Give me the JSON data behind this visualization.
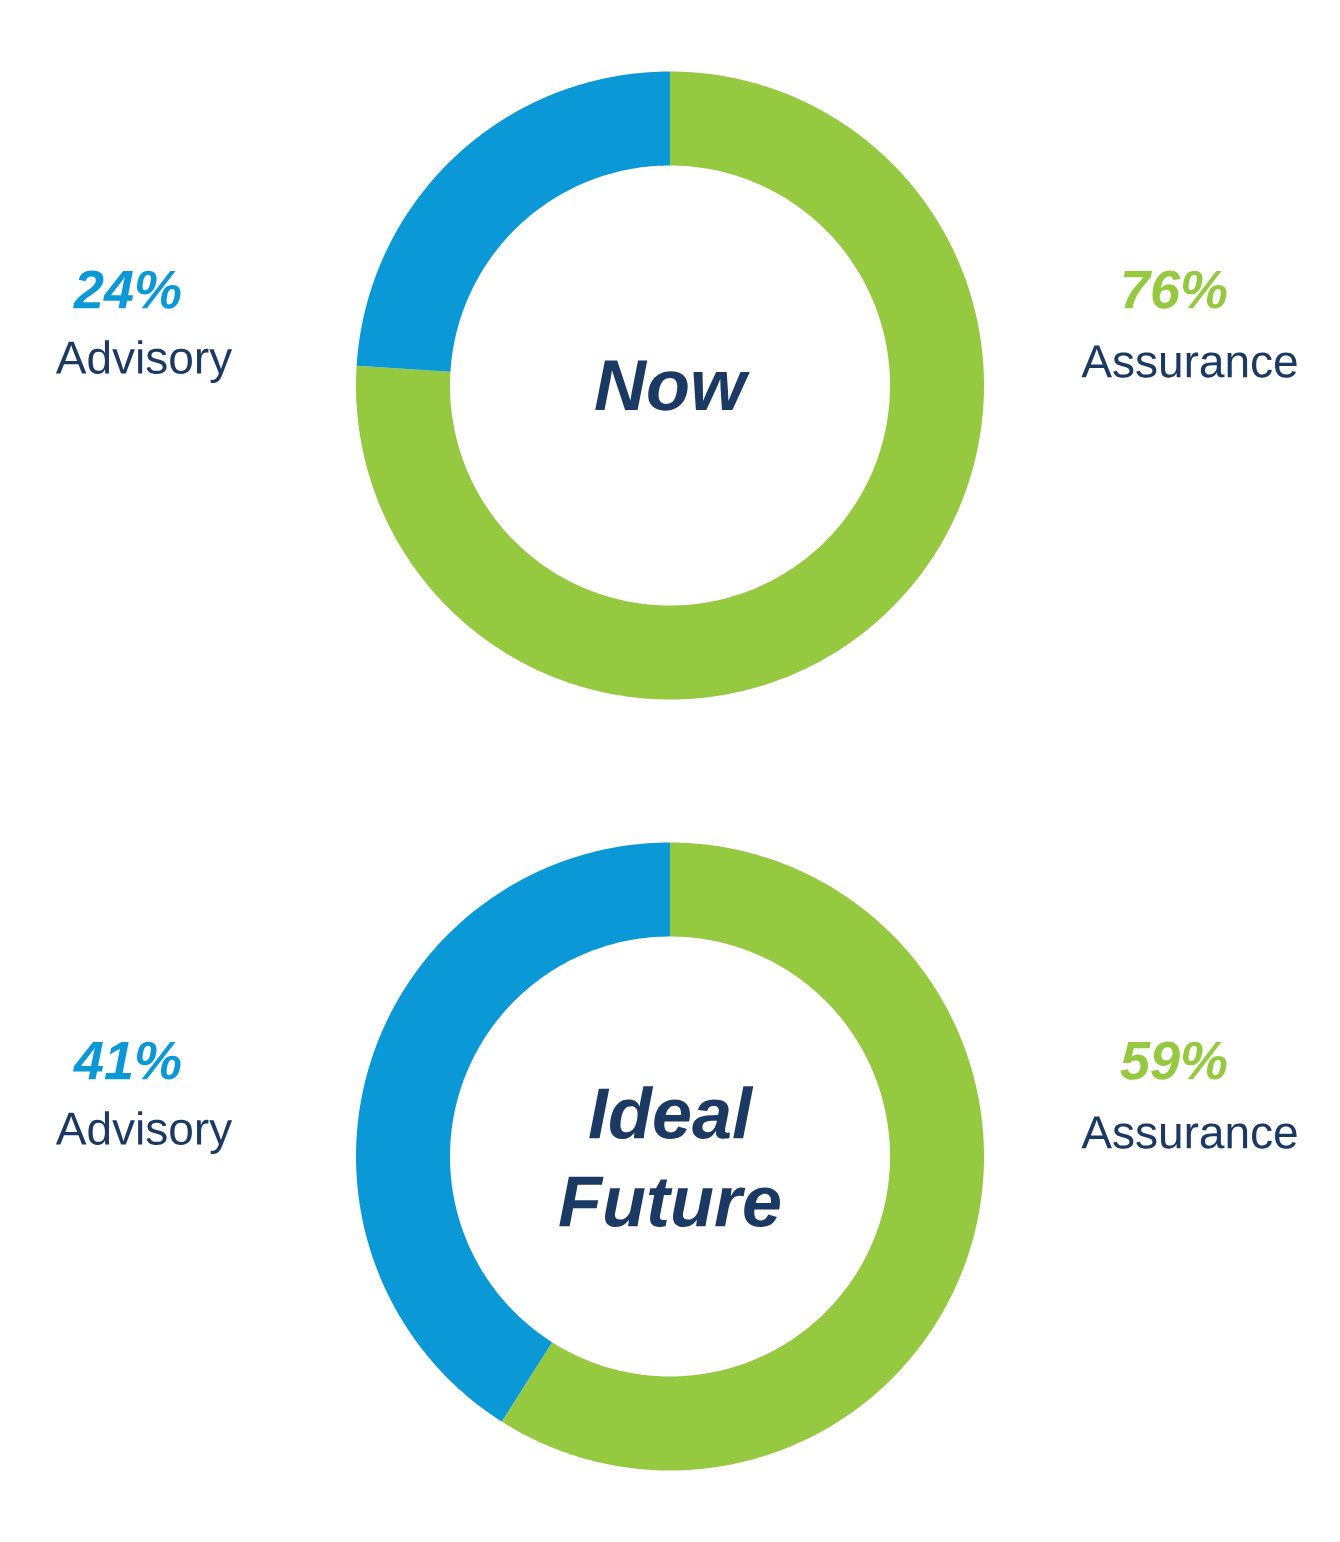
{
  "chart_data": [
    {
      "type": "donut",
      "title": "Now",
      "categories": [
        "Assurance",
        "Advisory"
      ],
      "values": [
        76,
        24
      ],
      "colors": [
        "#95c940",
        "#0a99d6"
      ],
      "value_labels": [
        "76%",
        "24%"
      ]
    },
    {
      "type": "donut",
      "title": "Ideal Future",
      "categories": [
        "Assurance",
        "Advisory"
      ],
      "values": [
        59,
        41
      ],
      "colors": [
        "#95c940",
        "#0a99d6"
      ],
      "value_labels": [
        "59%",
        "41%"
      ]
    }
  ]
}
